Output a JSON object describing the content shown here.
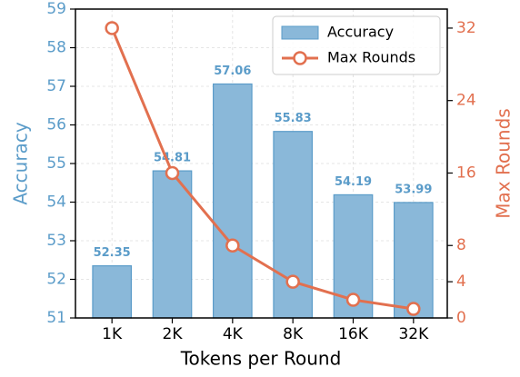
{
  "chart_data": {
    "type": "bar",
    "categories": [
      "1K",
      "2K",
      "4K",
      "8K",
      "16K",
      "32K"
    ],
    "xlabel": "Tokens per Round",
    "ylabel": "Accuracy",
    "y2label": "Max Rounds",
    "series": [
      {
        "name": "Accuracy",
        "color": "#8ab8d9",
        "values": [
          52.35,
          54.81,
          57.06,
          55.83,
          54.19,
          53.99
        ]
      },
      {
        "name": "Max Rounds",
        "color": "#e2704f",
        "axis": "y2",
        "values": [
          32,
          16,
          8,
          4,
          2,
          1
        ]
      }
    ],
    "ylim": [
      51,
      59
    ],
    "yticks": [
      51,
      52,
      53,
      54,
      55,
      56,
      57,
      58,
      59
    ],
    "y2lim": [
      0,
      34.1
    ],
    "y2ticks": [
      0,
      4,
      8,
      16,
      24,
      32
    ],
    "grid": true,
    "legend": "upper right"
  }
}
